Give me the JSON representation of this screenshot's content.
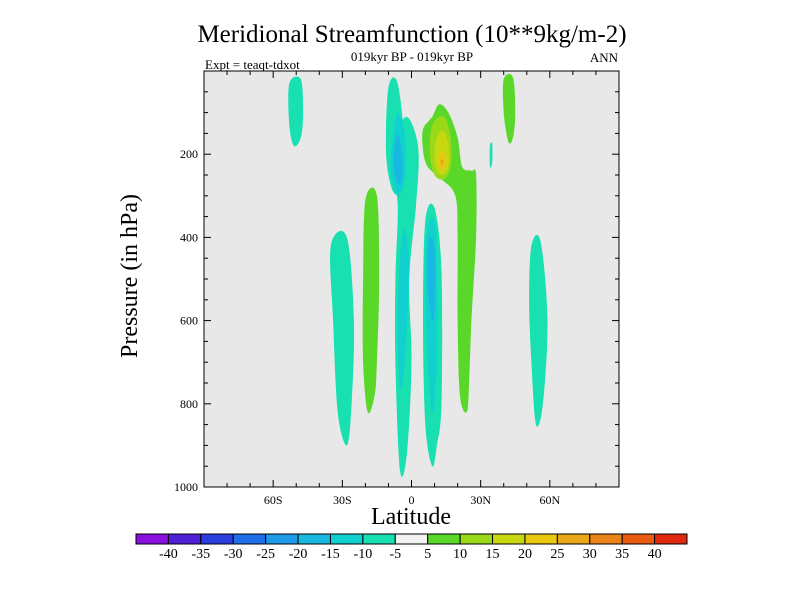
{
  "chart_data": {
    "type": "contour",
    "title": "Meridional Streamfunction (10**9kg/m-2)",
    "subtitle": "019kyr BP - 019kyr BP",
    "left_label": "Expt = teaqt-tdxot",
    "right_label": "ANN",
    "xlabel": "Latitude",
    "ylabel": "Pressure (in hPa)",
    "xlim": [
      -90,
      90
    ],
    "ylim": [
      0,
      1000
    ],
    "y_reversed": true,
    "x_ticks": [
      {
        "value": -60,
        "label": "60S"
      },
      {
        "value": -30,
        "label": "30S"
      },
      {
        "value": 0,
        "label": "0"
      },
      {
        "value": 30,
        "label": "30N"
      },
      {
        "value": 60,
        "label": "60N"
      }
    ],
    "y_ticks": [
      {
        "value": 200,
        "label": "200"
      },
      {
        "value": 400,
        "label": "400"
      },
      {
        "value": 600,
        "label": "600"
      },
      {
        "value": 800,
        "label": "800"
      },
      {
        "value": 1000,
        "label": "1000"
      }
    ],
    "background_color": "#e8e8e8",
    "colorbar": {
      "labels": [
        "-40",
        "-35",
        "-30",
        "-25",
        "-20",
        "-15",
        "-10",
        "-5",
        "5",
        "10",
        "15",
        "20",
        "25",
        "30",
        "35",
        "40"
      ],
      "colors": [
        "#8a10e0",
        "#5020d8",
        "#2a3ee0",
        "#1e6ee8",
        "#1e9ae8",
        "#18b8e0",
        "#10d0d0",
        "#18e0b0",
        "#f2f2f2",
        "#5ad82a",
        "#9ad81a",
        "#c8d810",
        "#e8c810",
        "#e8a818",
        "#e88418",
        "#e85a10",
        "#e02a10"
      ]
    },
    "regions": [
      {
        "name": "neg-10-a",
        "value_range": [
          -10,
          -5
        ],
        "color": "#18e0b0",
        "points": [
          [
            -35,
            420
          ],
          [
            -28,
            400
          ],
          [
            -25,
            600
          ],
          [
            -26,
            800
          ],
          [
            -28,
            900
          ],
          [
            -32,
            820
          ],
          [
            -34,
            600
          ]
        ]
      },
      {
        "name": "neg-10-b",
        "value_range": [
          -10,
          -5
        ],
        "color": "#18e0b0",
        "points": [
          [
            -5,
            130
          ],
          [
            -1,
            115
          ],
          [
            3,
            190
          ],
          [
            2,
            320
          ],
          [
            -1,
            500
          ],
          [
            0,
            700
          ],
          [
            -2,
            920
          ],
          [
            -5,
            960
          ],
          [
            -7,
            700
          ],
          [
            -7,
            500
          ],
          [
            -6,
            320
          ],
          [
            -9,
            220
          ]
        ]
      },
      {
        "name": "neg-10-c",
        "value_range": [
          -10,
          -5
        ],
        "color": "#18e0b0",
        "points": [
          [
            -10,
            40
          ],
          [
            -6,
            30
          ],
          [
            -3,
            180
          ],
          [
            -4,
            280
          ],
          [
            -8,
            290
          ],
          [
            -11,
            200
          ]
        ]
      },
      {
        "name": "neg-10-d",
        "value_range": [
          -10,
          -5
        ],
        "color": "#18e0b0",
        "points": [
          [
            6,
            360
          ],
          [
            10,
            330
          ],
          [
            13,
            480
          ],
          [
            13,
            800
          ],
          [
            11,
            900
          ],
          [
            9,
            950
          ],
          [
            6,
            850
          ],
          [
            5,
            600
          ]
        ]
      },
      {
        "name": "neg-10-e",
        "value_range": [
          -10,
          -5
        ],
        "color": "#18e0b0",
        "points": [
          [
            52,
            420
          ],
          [
            56,
            410
          ],
          [
            59,
            600
          ],
          [
            57,
            800
          ],
          [
            54,
            850
          ],
          [
            52,
            700
          ],
          [
            51,
            550
          ]
        ]
      },
      {
        "name": "neg-10-f",
        "value_range": [
          -10,
          -5
        ],
        "color": "#18e0b0",
        "points": [
          [
            -53,
            30
          ],
          [
            -48,
            20
          ],
          [
            -47,
            100
          ],
          [
            -48,
            160
          ],
          [
            -51,
            180
          ],
          [
            -53,
            130
          ]
        ]
      },
      {
        "name": "neg-10-g",
        "value_range": [
          -10,
          -5
        ],
        "color": "#18e0b0",
        "points": [
          [
            34,
            180
          ],
          [
            35,
            175
          ],
          [
            35,
            220
          ],
          [
            34,
            230
          ]
        ]
      },
      {
        "name": "neg-15-a",
        "value_range": [
          -15,
          -10
        ],
        "color": "#10d0d0",
        "points": [
          [
            -6,
            100
          ],
          [
            -3,
            150
          ],
          [
            -3,
            260
          ],
          [
            -6,
            300
          ],
          [
            -9,
            240
          ],
          [
            -8,
            160
          ]
        ]
      },
      {
        "name": "neg-15-b",
        "value_range": [
          -15,
          -10
        ],
        "color": "#10d0d0",
        "points": [
          [
            7,
            380
          ],
          [
            10,
            360
          ],
          [
            11,
            480
          ],
          [
            11,
            700
          ],
          [
            9,
            820
          ],
          [
            7,
            700
          ],
          [
            6,
            500
          ]
        ]
      },
      {
        "name": "neg-15-c",
        "value_range": [
          -15,
          -10
        ],
        "color": "#10d0d0",
        "points": [
          [
            -3,
            380
          ],
          [
            -1,
            480
          ],
          [
            -3,
            700
          ],
          [
            -5,
            760
          ],
          [
            -6,
            600
          ],
          [
            -5,
            450
          ]
        ]
      },
      {
        "name": "neg-20-a",
        "value_range": [
          -20,
          -15
        ],
        "color": "#18b8e0",
        "points": [
          [
            -6,
            150
          ],
          [
            -4,
            200
          ],
          [
            -4,
            260
          ],
          [
            -6,
            270
          ],
          [
            -8,
            220
          ],
          [
            -7,
            170
          ]
        ]
      },
      {
        "name": "neg-20-b",
        "value_range": [
          -20,
          -15
        ],
        "color": "#18b8e0",
        "points": [
          [
            8,
            400
          ],
          [
            10,
            430
          ],
          [
            10,
            560
          ],
          [
            9,
            600
          ],
          [
            7,
            520
          ],
          [
            7,
            450
          ]
        ]
      },
      {
        "name": "pos-5-a",
        "value_range": [
          5,
          10
        ],
        "color": "#5ad82a",
        "points": [
          [
            -20,
            310
          ],
          [
            -15,
            300
          ],
          [
            -14,
            500
          ],
          [
            -15,
            700
          ],
          [
            -16,
            780
          ],
          [
            -19,
            820
          ],
          [
            -21,
            700
          ],
          [
            -21,
            500
          ]
        ]
      },
      {
        "name": "pos-5-b",
        "value_range": [
          5,
          10
        ],
        "color": "#5ad82a",
        "points": [
          [
            5,
            140
          ],
          [
            9,
            110
          ],
          [
            12,
            80
          ],
          [
            16,
            100
          ],
          [
            20,
            160
          ],
          [
            22,
            230
          ],
          [
            26,
            240
          ],
          [
            28,
            250
          ],
          [
            28,
            400
          ],
          [
            26,
            600
          ],
          [
            25,
            750
          ],
          [
            24,
            820
          ],
          [
            21,
            780
          ],
          [
            20,
            600
          ],
          [
            20,
            400
          ],
          [
            19,
            300
          ],
          [
            13,
            260
          ],
          [
            7,
            230
          ],
          [
            5,
            190
          ]
        ]
      },
      {
        "name": "pos-5-c",
        "value_range": [
          5,
          10
        ],
        "color": "#5ad82a",
        "points": [
          [
            40,
            20
          ],
          [
            44,
            15
          ],
          [
            45,
            100
          ],
          [
            44,
            160
          ],
          [
            42,
            170
          ],
          [
            40,
            100
          ]
        ]
      },
      {
        "name": "pos-10-a",
        "value_range": [
          10,
          15
        ],
        "color": "#9ad81a",
        "points": [
          [
            9,
            130
          ],
          [
            14,
            110
          ],
          [
            17,
            160
          ],
          [
            17,
            230
          ],
          [
            14,
            260
          ],
          [
            10,
            250
          ],
          [
            8,
            200
          ]
        ]
      },
      {
        "name": "pos-15-a",
        "value_range": [
          15,
          20
        ],
        "color": "#c8d810",
        "points": [
          [
            11,
            160
          ],
          [
            14,
            145
          ],
          [
            16,
            180
          ],
          [
            16,
            230
          ],
          [
            13,
            250
          ],
          [
            10,
            220
          ]
        ]
      },
      {
        "name": "pos-20-a",
        "value_range": [
          20,
          25
        ],
        "color": "#e8c810",
        "points": [
          [
            12,
            200
          ],
          [
            14,
            195
          ],
          [
            15,
            220
          ],
          [
            14,
            235
          ],
          [
            12,
            230
          ]
        ]
      },
      {
        "name": "pos-25-a",
        "value_range": [
          25,
          30
        ],
        "color": "#e8a818",
        "points": [
          [
            12.5,
            215
          ],
          [
            13.5,
            212
          ],
          [
            14,
            222
          ],
          [
            13,
            226
          ]
        ]
      }
    ]
  }
}
